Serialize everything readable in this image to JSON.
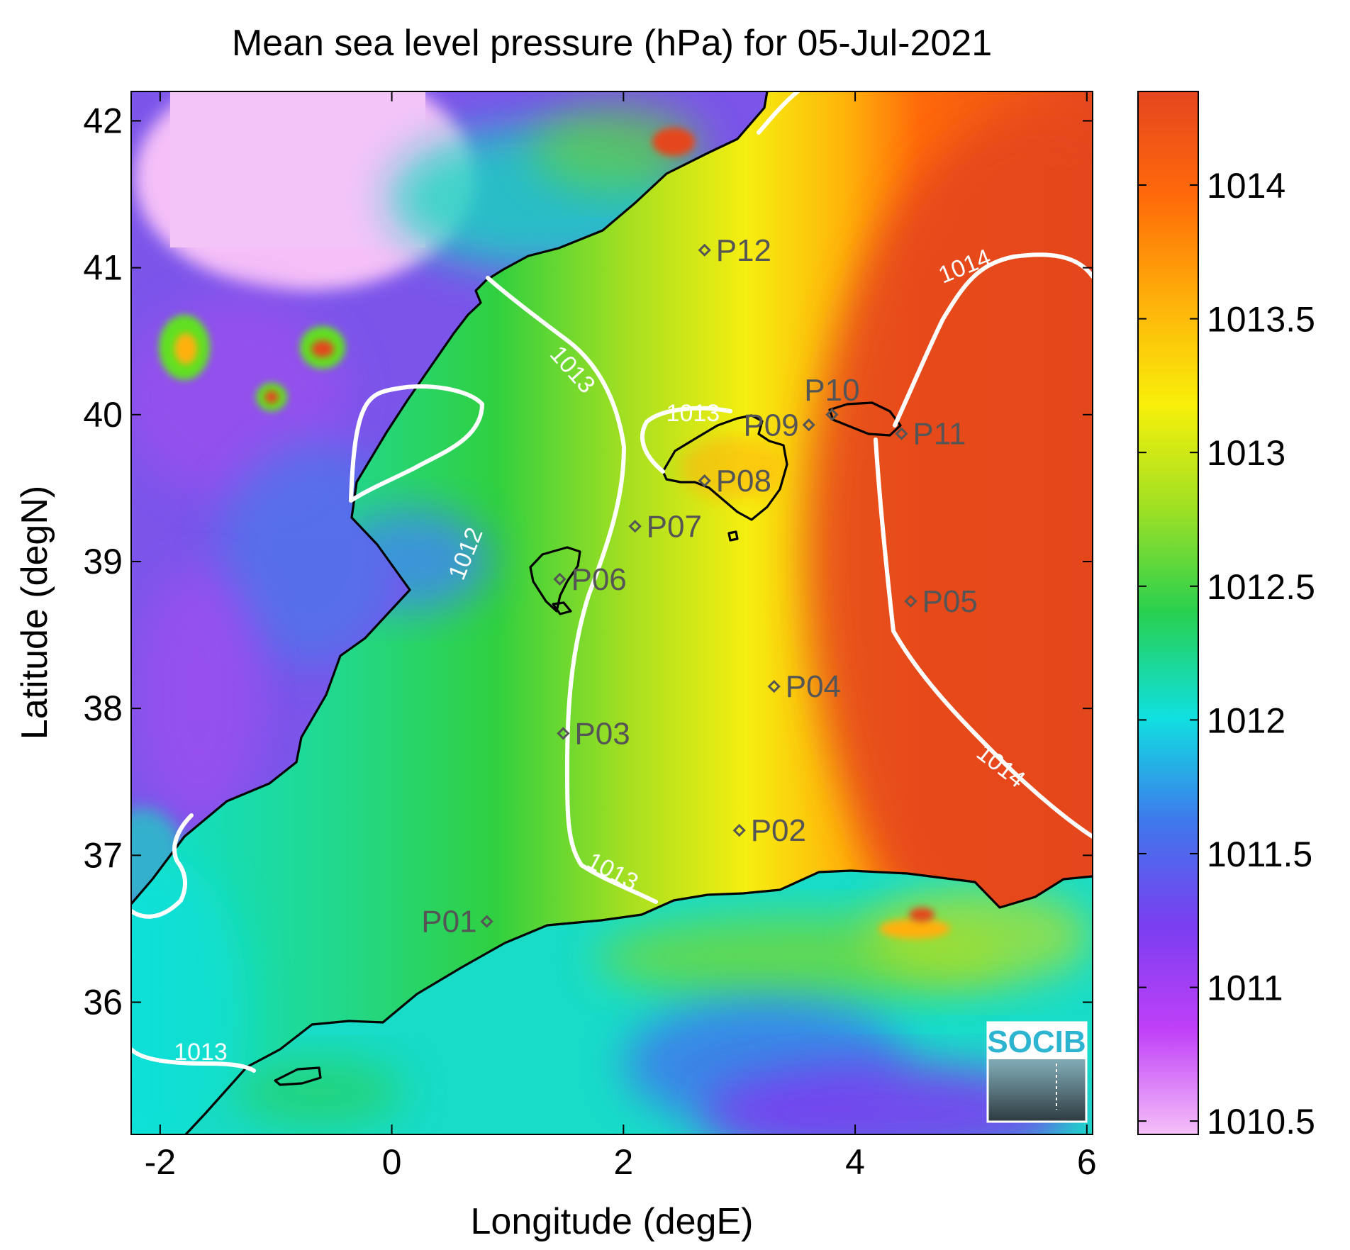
{
  "title": "Mean sea level pressure (hPa) for 05-Jul-2021",
  "map": {
    "xlabel": "Longitude (degE)",
    "ylabel": "Latitude (degN)",
    "xlim": [
      -2.25,
      6.05
    ],
    "ylim": [
      35.1,
      42.2
    ],
    "xticks": [
      -2,
      0,
      2,
      4,
      6
    ],
    "xtick_labels": [
      "-2",
      "0",
      "2",
      "4",
      "6"
    ],
    "yticks": [
      36,
      37,
      38,
      39,
      40,
      41,
      42
    ],
    "ytick_labels": [
      "36",
      "37",
      "38",
      "39",
      "40",
      "41",
      "42"
    ]
  },
  "stations": [
    {
      "name": "P01",
      "lon": 0.82,
      "lat": 36.55,
      "label_side": "left"
    },
    {
      "name": "P02",
      "lon": 3.0,
      "lat": 37.17,
      "label_side": "right"
    },
    {
      "name": "P03",
      "lon": 1.48,
      "lat": 37.83,
      "label_side": "right"
    },
    {
      "name": "P04",
      "lon": 3.3,
      "lat": 38.15,
      "label_side": "right"
    },
    {
      "name": "P05",
      "lon": 4.48,
      "lat": 38.73,
      "label_side": "right"
    },
    {
      "name": "P06",
      "lon": 1.45,
      "lat": 38.88,
      "label_side": "right"
    },
    {
      "name": "P07",
      "lon": 2.1,
      "lat": 39.24,
      "label_side": "right"
    },
    {
      "name": "P08",
      "lon": 2.7,
      "lat": 39.55,
      "label_side": "right"
    },
    {
      "name": "P09",
      "lon": 3.6,
      "lat": 39.93,
      "label_side": "left"
    },
    {
      "name": "P10",
      "lon": 3.8,
      "lat": 40.0,
      "label_side": "above"
    },
    {
      "name": "P11",
      "lon": 4.4,
      "lat": 39.87,
      "label_side": "right"
    },
    {
      "name": "P12",
      "lon": 2.7,
      "lat": 41.12,
      "label_side": "right"
    }
  ],
  "contours": [
    {
      "level": "1012",
      "label_lon": 0.65,
      "label_lat": 39.05,
      "label_rot": -68
    },
    {
      "level": "1013",
      "label_lon": 1.55,
      "label_lat": 40.3,
      "label_rot": 48
    },
    {
      "level": "1013",
      "label_lon": 2.6,
      "label_lat": 40.0,
      "label_rot": 0
    },
    {
      "level": "1013",
      "label_lon": 1.9,
      "label_lat": 36.88,
      "label_rot": 28
    },
    {
      "level": "1013",
      "label_lon": -1.65,
      "label_lat": 35.65,
      "label_rot": 0
    },
    {
      "level": "1014",
      "label_lon": 4.95,
      "label_lat": 41.0,
      "label_rot": -22
    },
    {
      "level": "1014",
      "label_lon": 5.25,
      "label_lat": 37.6,
      "label_rot": 38
    }
  ],
  "colorbar": {
    "min": 1010.45,
    "max": 1014.35,
    "ticks": [
      1010.5,
      1011,
      1011.5,
      1012,
      1012.5,
      1013,
      1013.5,
      1014
    ],
    "tick_labels": [
      "1010.5",
      "1011",
      "1011.5",
      "1012",
      "1012.5",
      "1013",
      "1013.5",
      "1014"
    ],
    "colormap": [
      "#f5c0f8",
      "#c040f8",
      "#7a3ef0",
      "#3f78ec",
      "#10e0e0",
      "#28d050",
      "#9ee024",
      "#f8f00a",
      "#ffb00a",
      "#ff6a0a",
      "#e5461f"
    ]
  },
  "logo": {
    "text": "SOCIB",
    "color": "#2cb4d0"
  },
  "colors": {
    "coast": "#000000",
    "contour": "#ffffff",
    "station": "#555555"
  }
}
